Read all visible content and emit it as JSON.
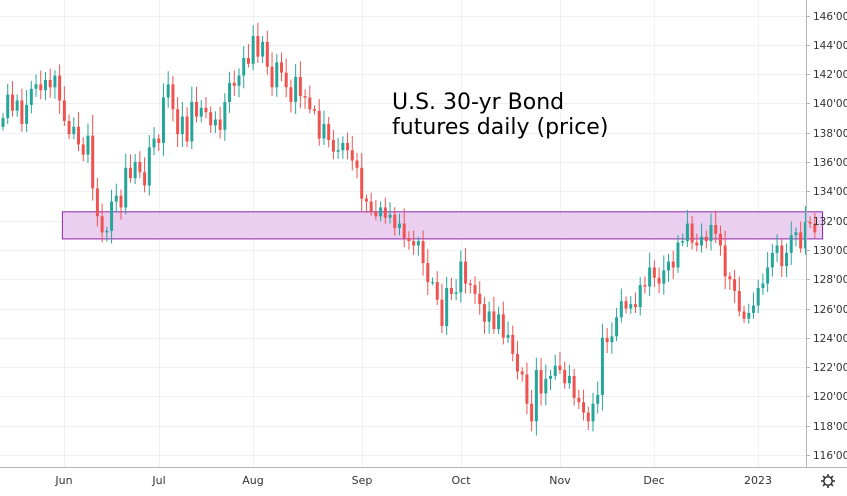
{
  "chart_data": {
    "type": "candlestick",
    "title": "U.S. 30-yr Bond futures daily (price)",
    "title_lines": [
      "U.S. 30-yr Bond",
      "futures daily (price)"
    ],
    "y_axis": {
      "min": 115,
      "max": 147,
      "ticks": [
        116,
        118,
        120,
        122,
        124,
        126,
        128,
        130,
        132,
        134,
        136,
        138,
        140,
        142,
        144,
        146
      ],
      "tick_labels": [
        "116'00",
        "118'00",
        "120'00",
        "122'00",
        "124'00",
        "126'00",
        "128'00",
        "130'00",
        "132'00",
        "134'00",
        "136'00",
        "138'00",
        "140'00",
        "142'00",
        "144'00",
        "146'00"
      ],
      "position": "right"
    },
    "x_axis": {
      "months": [
        {
          "label": "Jun",
          "bar_index": 13
        },
        {
          "label": "Jul",
          "bar_index": 33
        },
        {
          "label": "Aug",
          "bar_index": 53
        },
        {
          "label": "Sep",
          "bar_index": 76
        },
        {
          "label": "Oct",
          "bar_index": 97
        },
        {
          "label": "Nov",
          "bar_index": 118
        },
        {
          "label": "Dec",
          "bar_index": 138
        },
        {
          "label": "2023",
          "bar_index": 160
        }
      ]
    },
    "grid": true,
    "bull_color": "#26a69a",
    "bear_color": "#ef5350",
    "zone": {
      "low": 130.75,
      "high": 132.6,
      "start_bar": 13,
      "end_bar": 173,
      "fill": "#e6c7ee",
      "stroke": "#8e24aa"
    },
    "closes": [
      139,
      140.6,
      139.5,
      140.2,
      138.6,
      139.9,
      141,
      141.3,
      140.9,
      141.6,
      141.1,
      141.9,
      140.2,
      138.8,
      137.9,
      138.4,
      137.2,
      136.5,
      137.8,
      134.2,
      132.3,
      131.2,
      131.3,
      133.3,
      133.7,
      132.9,
      135.6,
      134.9,
      136,
      135.3,
      134.4,
      137,
      137.6,
      137.3,
      140.4,
      141.3,
      139.6,
      137.9,
      139.1,
      137.4,
      140.1,
      139.1,
      139.7,
      139.4,
      138.5,
      138.9,
      138.2,
      140.1,
      141.4,
      141.2,
      141.9,
      143.1,
      142.7,
      144.6,
      143.2,
      144.2,
      142.5,
      141.1,
      142.8,
      142.1,
      141.1,
      140.1,
      141.8,
      140.5,
      140.4,
      139.6,
      139.5,
      137.6,
      138.6,
      137.5,
      136.7,
      136.8,
      137.3,
      136.8,
      136.1,
      135.6,
      133.5,
      133.3,
      132.6,
      132.3,
      132.9,
      132.2,
      132.4,
      131.5,
      131.8,
      130.8,
      130.6,
      130.3,
      130.6,
      129.1,
      127.8,
      127.8,
      126.6,
      124.8,
      127.4,
      127,
      127.1,
      129.2,
      127.7,
      127.6,
      127,
      126.3,
      125.1,
      125.8,
      124.6,
      125.6,
      124,
      124.2,
      122.9,
      121.7,
      121.5,
      119.5,
      118.3,
      121.8,
      120.2,
      121.2,
      121.4,
      122.1,
      121.8,
      120.9,
      121.4,
      119.9,
      119.6,
      118.9,
      118.3,
      119.5,
      120.1,
      124,
      123.7,
      124.1,
      125.4,
      126.5,
      126,
      126.3,
      126.1,
      127.6,
      127.5,
      128.8,
      128.1,
      127.7,
      128.6,
      129.2,
      128.8,
      130.5,
      130.6,
      131.8,
      130.5,
      130.3,
      130.9,
      130.6,
      131.7,
      131.1,
      130.3,
      128.2,
      128,
      127.2,
      125.8,
      125.3,
      125.7,
      126.2,
      127.4,
      127.7,
      128.8,
      129.8,
      130.3,
      128.9,
      129.8,
      131,
      131.2,
      130.1,
      131.9,
      131.8,
      131.2
    ]
  }
}
